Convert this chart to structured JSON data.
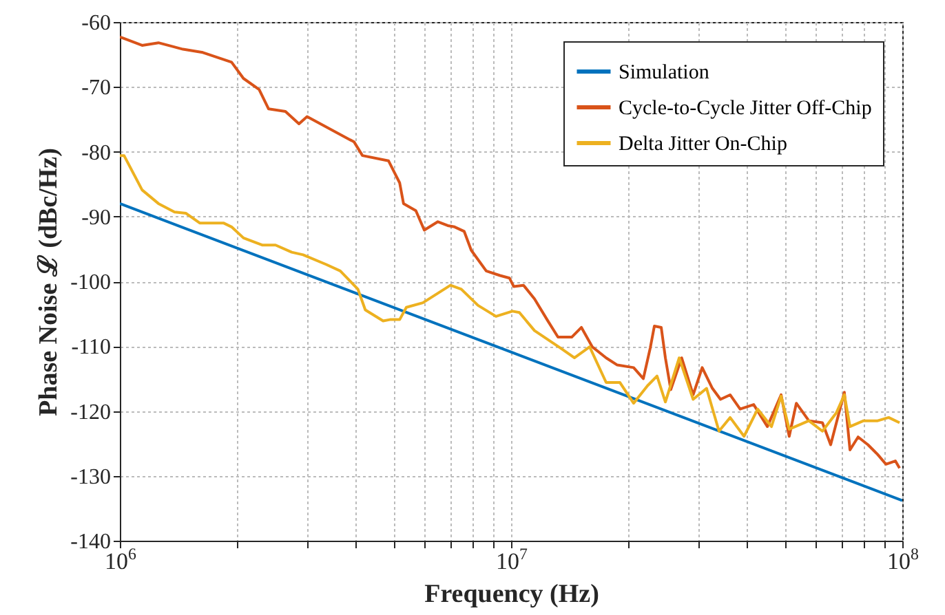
{
  "chart_data": {
    "type": "line",
    "xlabel": "Frequency (Hz)",
    "ylabel": "Phase Noise ℒ (dBc/Hz)",
    "log": "x",
    "grid": true,
    "legend": "top right",
    "line_style": "solid",
    "marker": "none",
    "xlim": [
      1000000,
      100000000
    ],
    "ylim": [
      -140,
      -60
    ],
    "xticks": [
      {
        "value": 1000000,
        "label": "10$^{6}$"
      },
      {
        "value": 2000000,
        "label": null
      },
      {
        "value": 3000000,
        "label": null
      },
      {
        "value": 4000000,
        "label": null
      },
      {
        "value": 5000000,
        "label": null
      },
      {
        "value": 6000000,
        "label": null
      },
      {
        "value": 7000000,
        "label": null
      },
      {
        "value": 8000000,
        "label": null
      },
      {
        "value": 9000000,
        "label": null
      },
      {
        "value": 10000000,
        "label": "10$^{7}$"
      },
      {
        "value": 20000000,
        "label": null
      },
      {
        "value": 30000000,
        "label": null
      },
      {
        "value": 40000000,
        "label": null
      },
      {
        "value": 50000000,
        "label": null
      },
      {
        "value": 60000000,
        "label": null
      },
      {
        "value": 70000000,
        "label": null
      },
      {
        "value": 80000000,
        "label": null
      },
      {
        "value": 90000000,
        "label": null
      },
      {
        "value": 100000000,
        "label": "10$^{8}$"
      }
    ],
    "yticks": [
      -140,
      -130,
      -120,
      -110,
      -100,
      -90,
      -80,
      -70,
      -60
    ],
    "series": [
      {
        "name": "Simulation",
        "color": "#0072bd",
        "x": [
          1000000,
          100000000
        ],
        "values": [
          -88,
          -133.8
        ]
      },
      {
        "name": "Cycle-to-Cycle Jitter Off-Chip",
        "color": "#d95319",
        "x": [
          1000000,
          1140000,
          1255000,
          1450000,
          1630000,
          1930000,
          2070000,
          2270000,
          2400000,
          2650000,
          2870000,
          3010000,
          3970000,
          4170000,
          4860000,
          5190000,
          5310000,
          5710000,
          6000000,
          6500000,
          6890000,
          7170000,
          7590000,
          7910000,
          8640000,
          9370000,
          9910000,
          10160000,
          10760000,
          11480000,
          12360000,
          13180000,
          14290000,
          15130000,
          16130000,
          17500000,
          18680000,
          20570000,
          21780000,
          22680000,
          23240000,
          24200000,
          24800000,
          25600000,
          27300000,
          29200000,
          30800000,
          32700000,
          34300000,
          36300000,
          38500000,
          41700000,
          45200000,
          49000000,
          51400000,
          53600000,
          57700000,
          62500000,
          65600000,
          71100000,
          73500000,
          77100000,
          81700000,
          86500000,
          90800000,
          96000000,
          98400000
        ],
        "values": [
          -62.3,
          -63.6,
          -63.2,
          -64.2,
          -64.7,
          -66.2,
          -68.7,
          -70.4,
          -73.4,
          -73.8,
          -75.7,
          -74.6,
          -78.5,
          -80.6,
          -81.4,
          -84.8,
          -88,
          -89.1,
          -92.1,
          -90.8,
          -91.4,
          -91.6,
          -92.3,
          -95.2,
          -98.4,
          -99.1,
          -99.5,
          -100.8,
          -100.6,
          -102.7,
          -105.9,
          -108.6,
          -108.6,
          -107.1,
          -110.1,
          -111.8,
          -112.9,
          -113.3,
          -115,
          -110.3,
          -106.9,
          -107.1,
          -111.8,
          -116.7,
          -111.8,
          -117.5,
          -113.3,
          -116.5,
          -118.2,
          -117.5,
          -119.7,
          -119,
          -122.4,
          -117.5,
          -123.9,
          -118.8,
          -121.5,
          -121.8,
          -125.2,
          -117.1,
          -126,
          -124,
          -125.2,
          -126.7,
          -128.2,
          -127.7,
          -128.8
        ]
      },
      {
        "name": "Delta Jitter On-Chip",
        "color": "#edb120",
        "x": [
          1000000,
          1025000,
          1140000,
          1255000,
          1380000,
          1476000,
          1600000,
          1840000,
          1930000,
          2070000,
          2310000,
          2500000,
          2750000,
          2940000,
          3370000,
          3660000,
          3840000,
          4060000,
          4240000,
          4710000,
          4900000,
          5190000,
          5400000,
          5950000,
          7000000,
          7460000,
          8230000,
          9150000,
          10080000,
          10500000,
          11480000,
          13390000,
          14520000,
          15880000,
          17500000,
          18980000,
          20570000,
          22320000,
          23610000,
          24800000,
          26900000,
          29200000,
          31600000,
          34000000,
          36300000,
          39400000,
          42700000,
          46300000,
          49000000,
          51400000,
          57700000,
          62500000,
          67800000,
          71100000,
          73500000,
          79600000,
          86500000,
          92300000,
          98400000
        ],
        "values": [
          -80.6,
          -80.6,
          -85.9,
          -88,
          -89.3,
          -89.5,
          -91,
          -91,
          -91.6,
          -93.3,
          -94.4,
          -94.4,
          -95.5,
          -95.9,
          -97.4,
          -98.4,
          -99.7,
          -101.2,
          -104.4,
          -106.1,
          -105.9,
          -105.9,
          -104,
          -103.3,
          -100.6,
          -101.2,
          -103.7,
          -105.4,
          -104.6,
          -104.8,
          -107.6,
          -110.3,
          -111.8,
          -110.1,
          -115.6,
          -115.6,
          -118.8,
          -116.1,
          -114.6,
          -118.6,
          -111.8,
          -118.2,
          -116.5,
          -123.1,
          -121,
          -123.9,
          -119.7,
          -122.4,
          -117.7,
          -122.8,
          -121.5,
          -123.1,
          -120.3,
          -117.5,
          -122.4,
          -121.5,
          -121.5,
          -121,
          -121.8
        ]
      }
    ]
  }
}
